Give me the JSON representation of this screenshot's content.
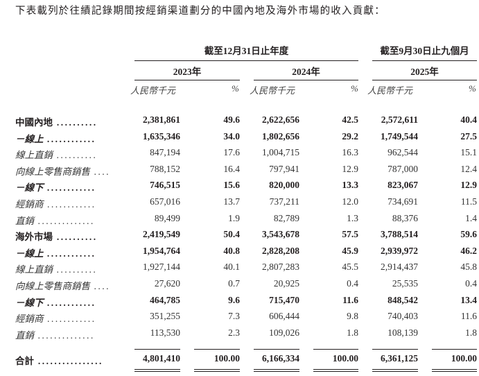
{
  "intro": "下表載列於往績記錄期間按經銷渠道劃分的中國內地及海外市場的收入貢獻：",
  "header": {
    "group1": "截至12月31日止年度",
    "group2": "截至9月30日止九個月",
    "years": [
      "2023年",
      "2024年",
      "2025年"
    ],
    "unit_amount": "人民幣千元",
    "unit_pct": "%"
  },
  "rows": [
    {
      "label": "中國內地",
      "type": "main",
      "values": [
        "2,381,861",
        "49.6",
        "2,622,656",
        "42.5",
        "2,572,611",
        "40.4"
      ]
    },
    {
      "label": "－線上",
      "type": "dash",
      "values": [
        "1,635,346",
        "34.0",
        "1,802,656",
        "29.2",
        "1,749,544",
        "27.5"
      ]
    },
    {
      "label": "線上直銷",
      "type": "sub",
      "values": [
        "847,194",
        "17.6",
        "1,004,715",
        "16.3",
        "962,544",
        "15.1"
      ]
    },
    {
      "label": "向線上零售商銷售",
      "type": "sub",
      "values": [
        "788,152",
        "16.4",
        "797,941",
        "12.9",
        "787,000",
        "12.4"
      ]
    },
    {
      "label": "－線下",
      "type": "dash",
      "values": [
        "746,515",
        "15.6",
        "820,000",
        "13.3",
        "823,067",
        "12.9"
      ]
    },
    {
      "label": "經銷商",
      "type": "sub",
      "values": [
        "657,016",
        "13.7",
        "737,211",
        "12.0",
        "734,691",
        "11.5"
      ]
    },
    {
      "label": "直銷",
      "type": "sub",
      "values": [
        "89,499",
        "1.9",
        "82,789",
        "1.3",
        "88,376",
        "1.4"
      ]
    },
    {
      "label": "海外市場",
      "type": "main",
      "values": [
        "2,419,549",
        "50.4",
        "3,543,678",
        "57.5",
        "3,788,514",
        "59.6"
      ]
    },
    {
      "label": "－線上",
      "type": "dash",
      "values": [
        "1,954,764",
        "40.8",
        "2,828,208",
        "45.9",
        "2,939,972",
        "46.2"
      ]
    },
    {
      "label": "線上直銷",
      "type": "sub",
      "values": [
        "1,927,144",
        "40.1",
        "2,807,283",
        "45.5",
        "2,914,437",
        "45.8"
      ]
    },
    {
      "label": "向線上零售商銷售",
      "type": "sub",
      "values": [
        "27,620",
        "0.7",
        "20,925",
        "0.4",
        "25,535",
        "0.4"
      ]
    },
    {
      "label": "－線下",
      "type": "dash",
      "values": [
        "464,785",
        "9.6",
        "715,470",
        "11.6",
        "848,542",
        "13.4"
      ]
    },
    {
      "label": "經銷商",
      "type": "sub",
      "values": [
        "351,255",
        "7.3",
        "606,444",
        "9.8",
        "740,403",
        "11.6"
      ]
    },
    {
      "label": "直銷",
      "type": "sub",
      "values": [
        "113,530",
        "2.3",
        "109,026",
        "1.8",
        "108,139",
        "1.8"
      ]
    }
  ],
  "total": {
    "label": "合計",
    "values": [
      "4,801,410",
      "100.00",
      "6,166,334",
      "100.00",
      "6,361,125",
      "100.00"
    ]
  }
}
